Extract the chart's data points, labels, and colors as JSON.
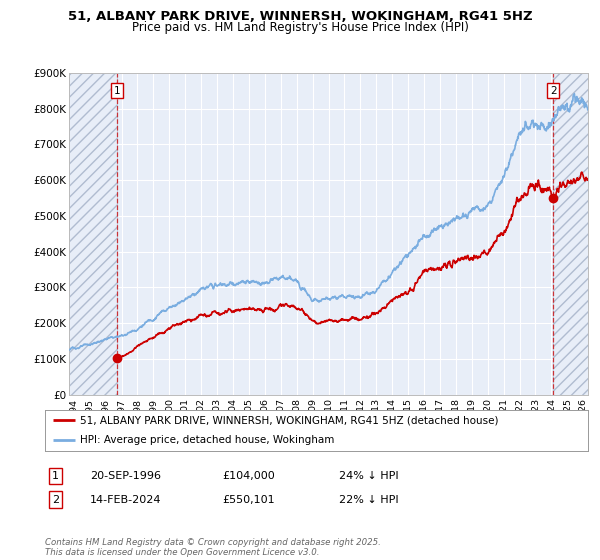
{
  "title_line1": "51, ALBANY PARK DRIVE, WINNERSH, WOKINGHAM, RG41 5HZ",
  "title_line2": "Price paid vs. HM Land Registry's House Price Index (HPI)",
  "legend_label1": "51, ALBANY PARK DRIVE, WINNERSH, WOKINGHAM, RG41 5HZ (detached house)",
  "legend_label2": "HPI: Average price, detached house, Wokingham",
  "annotation1_label": "1",
  "annotation1_date": "20-SEP-1996",
  "annotation1_price": "£104,000",
  "annotation1_hpi": "24% ↓ HPI",
  "annotation2_label": "2",
  "annotation2_date": "14-FEB-2024",
  "annotation2_price": "£550,101",
  "annotation2_hpi": "22% ↓ HPI",
  "footer": "Contains HM Land Registry data © Crown copyright and database right 2025.\nThis data is licensed under the Open Government Licence v3.0.",
  "color_red": "#cc0000",
  "color_blue": "#7aade0",
  "ylim": [
    0,
    900000
  ],
  "xlim_start": 1993.7,
  "xlim_end": 2026.3,
  "sale1_x": 1996.72,
  "sale1_y": 104000,
  "sale2_x": 2024.12,
  "sale2_y": 550101,
  "background_fig": "#ffffff",
  "background_plot": "#e8eef8"
}
